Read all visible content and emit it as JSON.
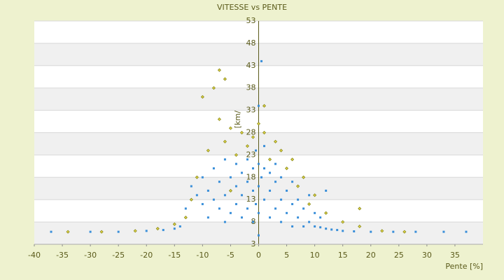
{
  "chart_data": {
    "type": "scatter",
    "title": "VITESSE vs PENTE",
    "xlabel": "Pente [%]",
    "ylabel": "[km/h]",
    "xlim": [
      -40,
      40
    ],
    "xticks": [
      -40,
      -35,
      -30,
      -25,
      -20,
      -15,
      -10,
      -5,
      0,
      5,
      10,
      15,
      20,
      25,
      30,
      35
    ],
    "ylim": [
      3,
      53
    ],
    "yticks": [
      3,
      8,
      13,
      18,
      23,
      28,
      33,
      38,
      43,
      48,
      53
    ],
    "grid": true,
    "series": [
      {
        "color": "#3a8fd9",
        "x": [
          -37,
          -30,
          -25,
          -20,
          -17,
          -15,
          -14,
          -13,
          -12,
          -11,
          -10,
          -10,
          -9,
          -9,
          -8,
          -8,
          -7,
          -7,
          -6,
          -6,
          -6,
          -5,
          -5,
          -4,
          -4,
          -4,
          -3,
          -3,
          -3,
          -2,
          -2,
          -2,
          -1,
          -1,
          -1,
          -0.5,
          -0.5,
          0,
          0,
          0,
          0,
          0,
          0.5,
          0.5,
          1,
          1,
          1,
          2,
          2,
          2,
          3,
          3,
          3,
          4,
          4,
          4,
          5,
          5,
          6,
          6,
          6,
          7,
          7,
          8,
          8,
          9,
          9,
          10,
          10,
          11,
          11,
          12,
          12,
          13,
          14,
          15,
          17,
          20,
          24,
          28,
          33,
          37
        ],
        "values": [
          5.8,
          5.8,
          5.8,
          6,
          6.2,
          6.5,
          7,
          11,
          16,
          14,
          12,
          18,
          9,
          15,
          13,
          20,
          11,
          17,
          8,
          14,
          22,
          10,
          18,
          12,
          16,
          21,
          9,
          14,
          19,
          11,
          17,
          22,
          8,
          15,
          20,
          12,
          24,
          5,
          10,
          16,
          21,
          34,
          44,
          18,
          13,
          20,
          25,
          9,
          15,
          19,
          11,
          17,
          21,
          8,
          13,
          18,
          10,
          15,
          7,
          12,
          17,
          9,
          13,
          7,
          11,
          8,
          14,
          7,
          10,
          6.8,
          9,
          6.5,
          15,
          6.3,
          6.2,
          6,
          5.9,
          5.8,
          5.8,
          5.8,
          5.8,
          5.8
        ]
      },
      {
        "color": "#8a8a1a",
        "x": [
          -34,
          -28,
          -22,
          -18,
          -15,
          -13,
          -12,
          -11,
          -10,
          -9,
          -8,
          -7,
          -7,
          -6,
          -6,
          -5,
          -5,
          -4,
          -3,
          -2,
          -1,
          0,
          1,
          1,
          2,
          3,
          4,
          5,
          6,
          7,
          8,
          9,
          10,
          12,
          15,
          18,
          18,
          22,
          26
        ],
        "values": [
          5.8,
          5.8,
          6,
          6.5,
          7.5,
          9,
          13,
          18,
          36,
          24,
          38,
          42,
          31,
          40,
          26,
          29,
          15,
          23,
          28,
          25,
          27,
          30,
          28,
          34,
          22,
          26,
          24,
          20,
          22,
          16,
          18,
          12,
          14,
          10,
          8,
          7,
          11,
          6,
          5.8
        ]
      }
    ]
  }
}
